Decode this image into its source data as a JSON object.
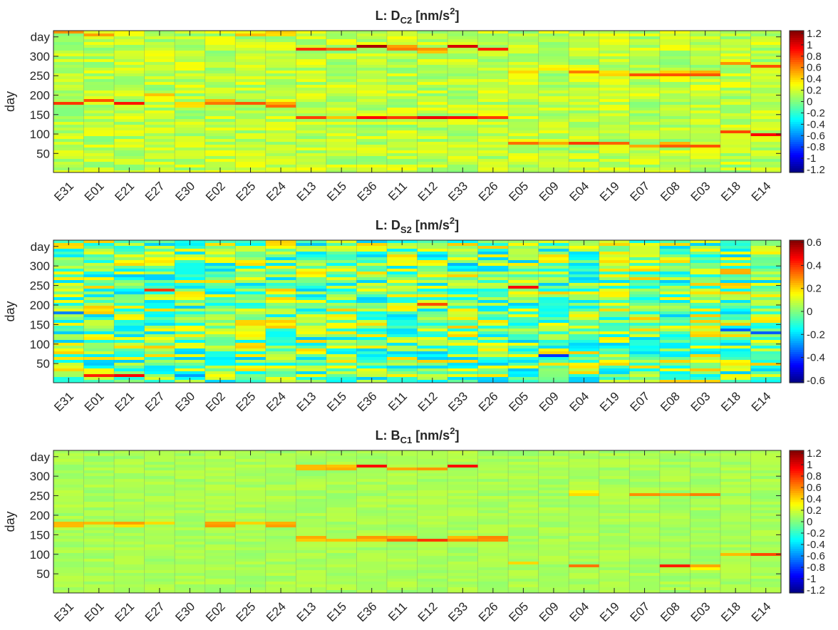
{
  "chart_data": [
    {
      "type": "heatmap",
      "title": "L: D",
      "title_sub": "C2",
      "title_unit": "[nm/s",
      "title_sup": "2",
      "title_end": "]",
      "ylabel": "day",
      "y_ticks": [
        "day",
        "300",
        "250",
        "200",
        "150",
        "100",
        "50"
      ],
      "y_tick_values": [
        350,
        300,
        250,
        200,
        150,
        100,
        50
      ],
      "ylim": [
        1,
        366
      ],
      "categories": [
        "E31",
        "E01",
        "E21",
        "E27",
        "E30",
        "E02",
        "E25",
        "E24",
        "E13",
        "E15",
        "E36",
        "E11",
        "E12",
        "E33",
        "E26",
        "E05",
        "E09",
        "E04",
        "E19",
        "E07",
        "E08",
        "E03",
        "E18",
        "E14"
      ],
      "colorbar": {
        "ticks": [
          "1.2",
          "1",
          "0.8",
          "0.6",
          "0.4",
          "0.2",
          "0",
          "-0.2",
          "-0.4",
          "-0.6",
          "-0.8",
          "-1",
          "-1.2"
        ],
        "tick_values": [
          1.2,
          1,
          0.8,
          0.6,
          0.4,
          0.2,
          0,
          -0.2,
          -0.4,
          -0.6,
          -0.8,
          -1,
          -1.2
        ],
        "range": [
          -1.25,
          1.25
        ]
      },
      "colormap": "jet",
      "background_level": 0.15,
      "noise_amplitude": 0.15,
      "highlights": [
        {
          "station": "E31",
          "day": 362,
          "value": 0.6
        },
        {
          "station": "E31",
          "day": 178,
          "value": 0.9
        },
        {
          "station": "E01",
          "day": 184,
          "value": 1.0
        },
        {
          "station": "E01",
          "day": 356,
          "value": 0.6
        },
        {
          "station": "E21",
          "day": 180,
          "value": 1.0
        },
        {
          "station": "E27",
          "day": 200,
          "value": 0.5
        },
        {
          "station": "E30",
          "day": 175,
          "value": 0.5
        },
        {
          "station": "E02",
          "day": 182,
          "value": 0.9
        },
        {
          "station": "E25",
          "day": 178,
          "value": 0.8
        },
        {
          "station": "E25",
          "day": 358,
          "value": 0.6
        },
        {
          "station": "E24",
          "day": 175,
          "value": 1.0
        },
        {
          "station": "E24",
          "day": 358,
          "value": 0.6
        },
        {
          "station": "E13",
          "day": 320,
          "value": 1.0
        },
        {
          "station": "E13",
          "day": 142,
          "value": 0.8
        },
        {
          "station": "E15",
          "day": 320,
          "value": 0.8
        },
        {
          "station": "E15",
          "day": 140,
          "value": 0.6
        },
        {
          "station": "E36",
          "day": 326,
          "value": 1.2
        },
        {
          "station": "E36",
          "day": 143,
          "value": 1.0
        },
        {
          "station": "E11",
          "day": 322,
          "value": 1.0
        },
        {
          "station": "E11",
          "day": 140,
          "value": 1.1
        },
        {
          "station": "E12",
          "day": 315,
          "value": 0.9
        },
        {
          "station": "E12",
          "day": 142,
          "value": 1.0
        },
        {
          "station": "E33",
          "day": 325,
          "value": 1.1
        },
        {
          "station": "E33",
          "day": 143,
          "value": 1.0
        },
        {
          "station": "E26",
          "day": 318,
          "value": 0.9
        },
        {
          "station": "E26",
          "day": 144,
          "value": 1.0
        },
        {
          "station": "E05",
          "day": 78,
          "value": 0.8
        },
        {
          "station": "E05",
          "day": 262,
          "value": 0.5
        },
        {
          "station": "E09",
          "day": 75,
          "value": 0.6
        },
        {
          "station": "E09",
          "day": 268,
          "value": 0.4
        },
        {
          "station": "E04",
          "day": 74,
          "value": 1.0
        },
        {
          "station": "E04",
          "day": 262,
          "value": 0.8
        },
        {
          "station": "E19",
          "day": 75,
          "value": 0.8
        },
        {
          "station": "E19",
          "day": 256,
          "value": 0.6
        },
        {
          "station": "E07",
          "day": 70,
          "value": 0.6
        },
        {
          "station": "E07",
          "day": 253,
          "value": 0.8
        },
        {
          "station": "E08",
          "day": 72,
          "value": 1.0
        },
        {
          "station": "E08",
          "day": 255,
          "value": 1.0
        },
        {
          "station": "E03",
          "day": 68,
          "value": 0.8
        },
        {
          "station": "E03",
          "day": 255,
          "value": 1.1
        },
        {
          "station": "E18",
          "day": 105,
          "value": 0.8
        },
        {
          "station": "E18",
          "day": 280,
          "value": 0.7
        },
        {
          "station": "E14",
          "day": 100,
          "value": 1.2
        },
        {
          "station": "E14",
          "day": 275,
          "value": 0.8
        }
      ]
    },
    {
      "type": "heatmap",
      "title": "L: D",
      "title_sub": "S2",
      "title_unit": "[nm/s",
      "title_sup": "2",
      "title_end": "]",
      "ylabel": "day",
      "y_ticks": [
        "day",
        "300",
        "250",
        "200",
        "150",
        "100",
        "50"
      ],
      "y_tick_values": [
        350,
        300,
        250,
        200,
        150,
        100,
        50
      ],
      "ylim": [
        1,
        366
      ],
      "categories": [
        "E31",
        "E01",
        "E21",
        "E27",
        "E30",
        "E02",
        "E25",
        "E24",
        "E13",
        "E15",
        "E36",
        "E11",
        "E12",
        "E33",
        "E26",
        "E05",
        "E09",
        "E04",
        "E19",
        "E07",
        "E08",
        "E03",
        "E18",
        "E14"
      ],
      "colorbar": {
        "ticks": [
          "0.6",
          "0.4",
          "0.2",
          "0",
          "-0.2",
          "-0.4",
          "-0.6"
        ],
        "tick_values": [
          0.6,
          0.4,
          0.2,
          0,
          -0.2,
          -0.4,
          -0.6
        ],
        "range": [
          -0.62,
          0.62
        ]
      },
      "colormap": "jet",
      "background_level": 0.0,
      "noise_amplitude": 0.22,
      "highlights": [
        {
          "station": "E27",
          "day": 240,
          "value": 0.55
        },
        {
          "station": "E05",
          "day": 245,
          "value": 0.5
        },
        {
          "station": "E01",
          "day": 22,
          "value": 0.55
        },
        {
          "station": "E21",
          "day": 20,
          "value": 0.5
        },
        {
          "station": "E18",
          "day": 285,
          "value": 0.5
        },
        {
          "station": "E18",
          "day": 138,
          "value": -0.5
        },
        {
          "station": "E14",
          "day": 130,
          "value": -0.45
        },
        {
          "station": "E31",
          "day": 182,
          "value": -0.5
        },
        {
          "station": "E30",
          "day": 20,
          "value": -0.3
        },
        {
          "station": "E09",
          "day": 72,
          "value": -0.55
        },
        {
          "station": "E12",
          "day": 200,
          "value": 0.5
        },
        {
          "station": "E33",
          "day": 300,
          "value": -0.4
        }
      ]
    },
    {
      "type": "heatmap",
      "title": "L: B",
      "title_sub": "C1",
      "title_unit": "[nm/s",
      "title_sup": "2",
      "title_end": "]",
      "ylabel": "day",
      "y_ticks": [
        "day",
        "300",
        "250",
        "200",
        "150",
        "100",
        "50"
      ],
      "y_tick_values": [
        350,
        300,
        250,
        200,
        150,
        100,
        50
      ],
      "ylim": [
        1,
        366
      ],
      "categories": [
        "E31",
        "E01",
        "E21",
        "E27",
        "E30",
        "E02",
        "E25",
        "E24",
        "E13",
        "E15",
        "E36",
        "E11",
        "E12",
        "E33",
        "E26",
        "E05",
        "E09",
        "E04",
        "E19",
        "E07",
        "E08",
        "E03",
        "E18",
        "E14"
      ],
      "colorbar": {
        "ticks": [
          "1.2",
          "1",
          "0.8",
          "0.6",
          "0.4",
          "0.2",
          "0",
          "-0.2",
          "-0.4",
          "-0.6",
          "-0.8",
          "-1",
          "-1.2"
        ],
        "tick_values": [
          1.2,
          1,
          0.8,
          0.6,
          0.4,
          0.2,
          0,
          -0.2,
          -0.4,
          -0.6,
          -0.8,
          -1,
          -1.2
        ],
        "range": [
          -1.25,
          1.25
        ]
      },
      "colormap": "jet",
      "background_level": 0.1,
      "noise_amplitude": 0.06,
      "highlights": [
        {
          "station": "E31",
          "day": 176,
          "value": 0.8
        },
        {
          "station": "E01",
          "day": 178,
          "value": 0.6
        },
        {
          "station": "E21",
          "day": 177,
          "value": 0.8
        },
        {
          "station": "E27",
          "day": 178,
          "value": 0.5
        },
        {
          "station": "E02",
          "day": 176,
          "value": 0.9
        },
        {
          "station": "E25",
          "day": 178,
          "value": 0.5
        },
        {
          "station": "E24",
          "day": 176,
          "value": 0.9
        },
        {
          "station": "E13",
          "day": 140,
          "value": 0.8
        },
        {
          "station": "E15",
          "day": 138,
          "value": 0.6
        },
        {
          "station": "E36",
          "day": 140,
          "value": 0.9
        },
        {
          "station": "E11",
          "day": 139,
          "value": 1.0
        },
        {
          "station": "E12",
          "day": 137,
          "value": 0.9
        },
        {
          "station": "E33",
          "day": 139,
          "value": 0.9
        },
        {
          "station": "E26",
          "day": 140,
          "value": 1.0
        },
        {
          "station": "E13",
          "day": 322,
          "value": 0.8
        },
        {
          "station": "E15",
          "day": 322,
          "value": 0.8
        },
        {
          "station": "E36",
          "day": 325,
          "value": 1.0
        },
        {
          "station": "E11",
          "day": 320,
          "value": 0.6
        },
        {
          "station": "E12",
          "day": 318,
          "value": 0.6
        },
        {
          "station": "E33",
          "day": 325,
          "value": 1.0
        },
        {
          "station": "E05",
          "day": 76,
          "value": 0.5
        },
        {
          "station": "E04",
          "day": 72,
          "value": 0.8
        },
        {
          "station": "E08",
          "day": 70,
          "value": 0.9
        },
        {
          "station": "E03",
          "day": 68,
          "value": 0.7
        },
        {
          "station": "E04",
          "day": 256,
          "value": 0.6
        },
        {
          "station": "E07",
          "day": 253,
          "value": 0.6
        },
        {
          "station": "E08",
          "day": 254,
          "value": 0.6
        },
        {
          "station": "E03",
          "day": 255,
          "value": 0.8
        },
        {
          "station": "E18",
          "day": 100,
          "value": 0.5
        },
        {
          "station": "E14",
          "day": 100,
          "value": 0.8
        }
      ]
    }
  ]
}
